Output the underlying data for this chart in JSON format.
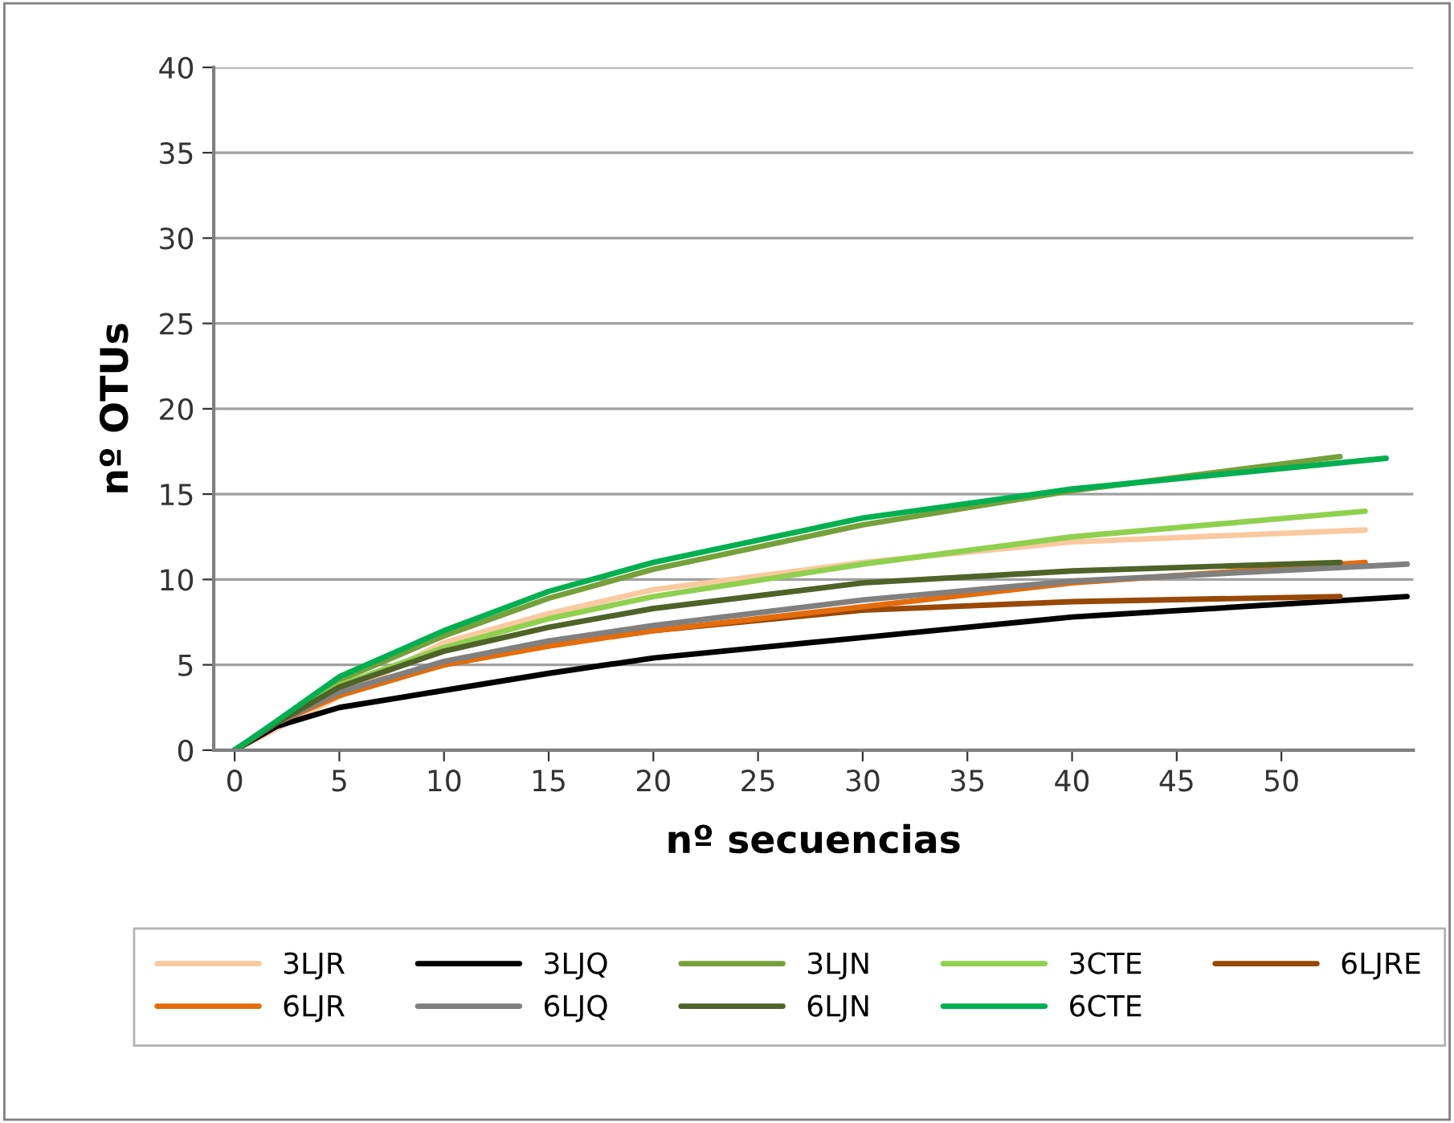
{
  "chart_data": {
    "type": "line",
    "xlabel": "nº secuencias",
    "ylabel": "nº OTUs",
    "xlim": [
      -1,
      56.3
    ],
    "xticks": [
      0,
      5,
      10,
      15,
      20,
      25,
      30,
      35,
      40,
      45,
      50
    ],
    "ylim": [
      0,
      40
    ],
    "yticks": [
      0,
      5,
      10,
      15,
      20,
      25,
      30,
      35,
      40
    ],
    "grid": "y",
    "legend": "bottom",
    "marker": "none",
    "line_style": "solid",
    "series": [
      {
        "name": "3LJR",
        "color": "#fac9a0",
        "x": [
          0,
          10,
          15,
          20,
          30,
          40,
          54
        ],
        "values": [
          0,
          6.3,
          8.0,
          9.4,
          11,
          12.2,
          12.9
        ]
      },
      {
        "name": "3LJQ",
        "color": "#000000",
        "x": [
          0,
          2,
          5,
          10,
          15,
          20,
          30,
          40,
          56
        ],
        "values": [
          0,
          1.4,
          2.5,
          3.5,
          4.5,
          5.4,
          6.6,
          7.8,
          9.0
        ]
      },
      {
        "name": "3LJN",
        "color": "#76a03a",
        "x": [
          0,
          2,
          5,
          10,
          15,
          20,
          30,
          40,
          52.8
        ],
        "values": [
          0,
          1.6,
          4.1,
          6.7,
          8.9,
          10.6,
          13.2,
          15.2,
          17.2
        ]
      },
      {
        "name": "3CTE",
        "color": "#8fd14f",
        "x": [
          0,
          2,
          5,
          10,
          15,
          20,
          30,
          40,
          54
        ],
        "values": [
          0,
          1.6,
          3.8,
          6.0,
          7.7,
          9.0,
          10.9,
          12.5,
          14.0
        ]
      },
      {
        "name": "6LJRE",
        "color": "#984807",
        "x": [
          0,
          2,
          5,
          10,
          15,
          20,
          30,
          40,
          52.8
        ],
        "values": [
          0,
          1.6,
          3.3,
          5.0,
          6.2,
          7.0,
          8.2,
          8.7,
          9.0
        ]
      },
      {
        "name": "6LJR",
        "color": "#e46c0a",
        "x": [
          0,
          2,
          5,
          10,
          15,
          20,
          30,
          40,
          54
        ],
        "values": [
          0,
          1.6,
          3.2,
          5.0,
          6.1,
          7.0,
          8.4,
          9.8,
          11.0
        ]
      },
      {
        "name": "6LJQ",
        "color": "#808080",
        "x": [
          0,
          2,
          5,
          10,
          15,
          20,
          30,
          40,
          56
        ],
        "values": [
          0,
          1.6,
          3.4,
          5.2,
          6.4,
          7.3,
          8.8,
          9.9,
          10.9
        ]
      },
      {
        "name": "6LJN",
        "color": "#4f6228",
        "x": [
          0,
          2,
          5,
          10,
          15,
          20,
          30,
          40,
          52.8
        ],
        "values": [
          0,
          1.6,
          3.7,
          5.8,
          7.2,
          8.3,
          9.8,
          10.5,
          11.0
        ]
      },
      {
        "name": "6CTE",
        "color": "#00b050",
        "x": [
          0,
          2,
          5,
          10,
          15,
          20,
          30,
          40,
          55
        ],
        "values": [
          0,
          1.7,
          4.3,
          7.0,
          9.3,
          11.0,
          13.6,
          15.3,
          17.1
        ]
      }
    ]
  }
}
